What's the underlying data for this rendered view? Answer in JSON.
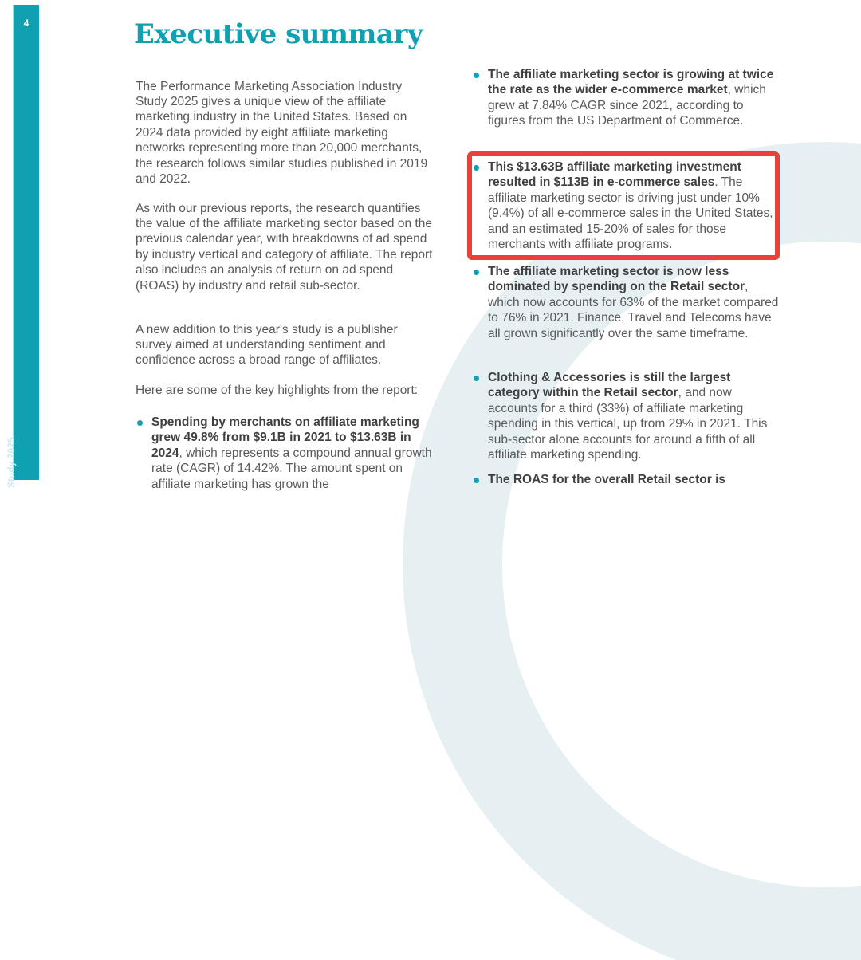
{
  "page": {
    "number": "4",
    "sidebar_text": "Study 2025"
  },
  "title": "Executive summary",
  "left_column": {
    "paragraphs": [
      "The Performance Marketing Association Industry Study 2025 gives a unique view of the affiliate marketing industry in the United States. Based on 2024 data provided by eight affiliate marketing networks representing more than 20,000 merchants, the research follows similar studies published in 2019 and 2022.",
      "As with our previous reports, the research quantifies the value of the affiliate marketing sector based on the previous calendar year, with breakdowns of ad spend by industry vertical and category of affiliate. The report also includes an analysis of return on ad spend (ROAS) by industry and retail sub-sector.",
      "A new addition to this year's study is a publisher survey aimed at understanding sentiment and confidence across a broad range of affiliates.",
      "Here are some of the key highlights from the report:"
    ],
    "bullet": {
      "bold": "Spending by merchants on affiliate marketing grew 49.8% from $9.1B in 2021 to $13.63B in 2024",
      "regular": ", which represents a compound annual growth rate (CAGR) of 14.42%. The amount spent on affiliate marketing has grown the"
    }
  },
  "right_column": {
    "bullets": [
      {
        "bold": "The affiliate marketing sector is growing at twice the rate as the wider e-commerce market",
        "regular": ", which grew at 7.84% CAGR since 2021, according to figures from the US Department of Commerce."
      },
      {
        "bold": "This $13.63B affiliate marketing investment resulted in $113B in e-commerce sales",
        "regular": ". The affiliate marketing sector is driving just under 10% (9.4%) of all e-commerce sales in the United States, and an estimated 15-20% of sales for those merchants with affiliate programs."
      },
      {
        "bold": "The affiliate marketing sector is now less dominated by spending on the Retail sector",
        "regular": ", which now accounts for 63% of the market compared to 76% in 2021. Finance, Travel and Telecoms have all grown significantly over the same timeframe."
      },
      {
        "bold": "Clothing & Accessories is still the largest category within the Retail sector",
        "regular": ", and now accounts for a third (33%) of affiliate marketing spending in this vertical, up from 29% in 2021. This sub-sector alone accounts for around a fifth of all affiliate marketing spending."
      },
      {
        "bold": "The ROAS for the overall Retail sector is",
        "regular": ""
      }
    ]
  },
  "colors": {
    "accent_teal": "#0FA0B2",
    "highlight_red": "#E8413B",
    "body_gray": "#58595B",
    "bold_dark": "#3F4042",
    "watermark": "#E6F0F2"
  }
}
